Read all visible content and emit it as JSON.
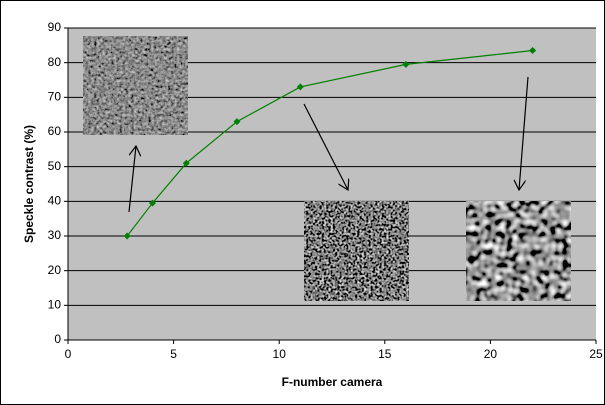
{
  "chart_data": {
    "type": "line",
    "x_label": "F-number camera",
    "y_label": "Speckle contrast (%)",
    "x": [
      2.8,
      4,
      5.6,
      8,
      11,
      16,
      22
    ],
    "values": [
      30,
      39.5,
      51,
      63,
      73,
      79.5,
      83.5
    ],
    "color": "#008000",
    "xlim": [
      0,
      25
    ],
    "xticks": [
      0,
      5,
      10,
      15,
      20,
      25
    ],
    "ylim": [
      0,
      90
    ],
    "yticks": [
      0,
      10,
      20,
      30,
      40,
      50,
      60,
      70,
      80,
      90
    ],
    "grid": true
  }
}
